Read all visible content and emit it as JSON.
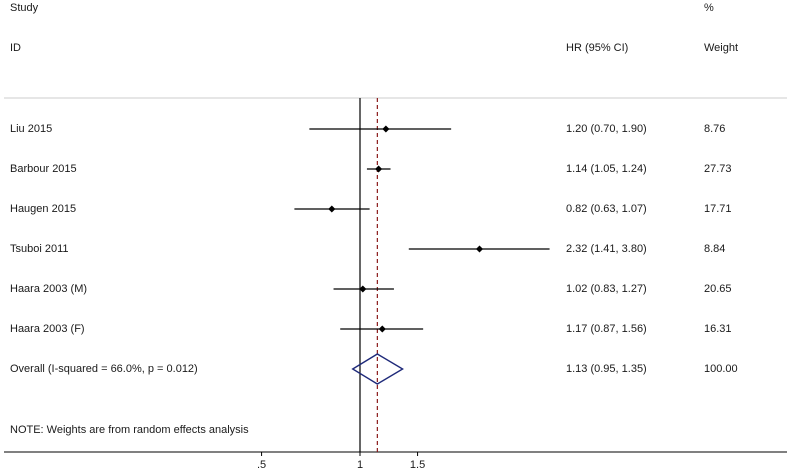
{
  "header": {
    "study_label": "Study",
    "id_label": "ID",
    "hr_label": "HR (95% CI)",
    "pct_label": "%",
    "weight_label": "Weight"
  },
  "note": "NOTE: Weights are from random effects analysis",
  "colors": {
    "ci_line": "#000000",
    "overall_diamond": "#1f2a7a",
    "reference_line": "#8b1a1a",
    "axis": "#000000"
  },
  "chart_data": {
    "type": "forest",
    "x_axis": {
      "ticks": [
        0.5,
        1,
        1.5
      ],
      "tick_labels": [
        ".5",
        "1",
        "1.5"
      ],
      "null_line": 1
    },
    "studies": [
      {
        "id": "Liu 2015",
        "hr": 1.2,
        "lo": 0.7,
        "hi": 1.9,
        "hr_text": "1.20 (0.70, 1.90)",
        "weight": "8.76"
      },
      {
        "id": "Barbour 2015",
        "hr": 1.14,
        "lo": 1.05,
        "hi": 1.24,
        "hr_text": "1.14 (1.05, 1.24)",
        "weight": "27.73"
      },
      {
        "id": "Haugen 2015",
        "hr": 0.82,
        "lo": 0.63,
        "hi": 1.07,
        "hr_text": "0.82 (0.63, 1.07)",
        "weight": "17.71"
      },
      {
        "id": "Tsuboi 2011",
        "hr": 2.32,
        "lo": 1.41,
        "hi": 3.8,
        "hr_text": "2.32 (1.41, 3.80)",
        "weight": "8.84"
      },
      {
        "id": "Haara 2003 (M)",
        "hr": 1.02,
        "lo": 0.83,
        "hi": 1.27,
        "hr_text": "1.02 (0.83, 1.27)",
        "weight": "20.65"
      },
      {
        "id": "Haara 2003 (F)",
        "hr": 1.17,
        "lo": 0.87,
        "hi": 1.56,
        "hr_text": "1.17 (0.87, 1.56)",
        "weight": "16.31"
      }
    ],
    "overall": {
      "label": "Overall  (I-squared = 66.0%, p = 0.012)",
      "hr": 1.13,
      "lo": 0.95,
      "hi": 1.35,
      "hr_text": "1.13 (0.95, 1.35)",
      "weight": "100.00"
    }
  }
}
